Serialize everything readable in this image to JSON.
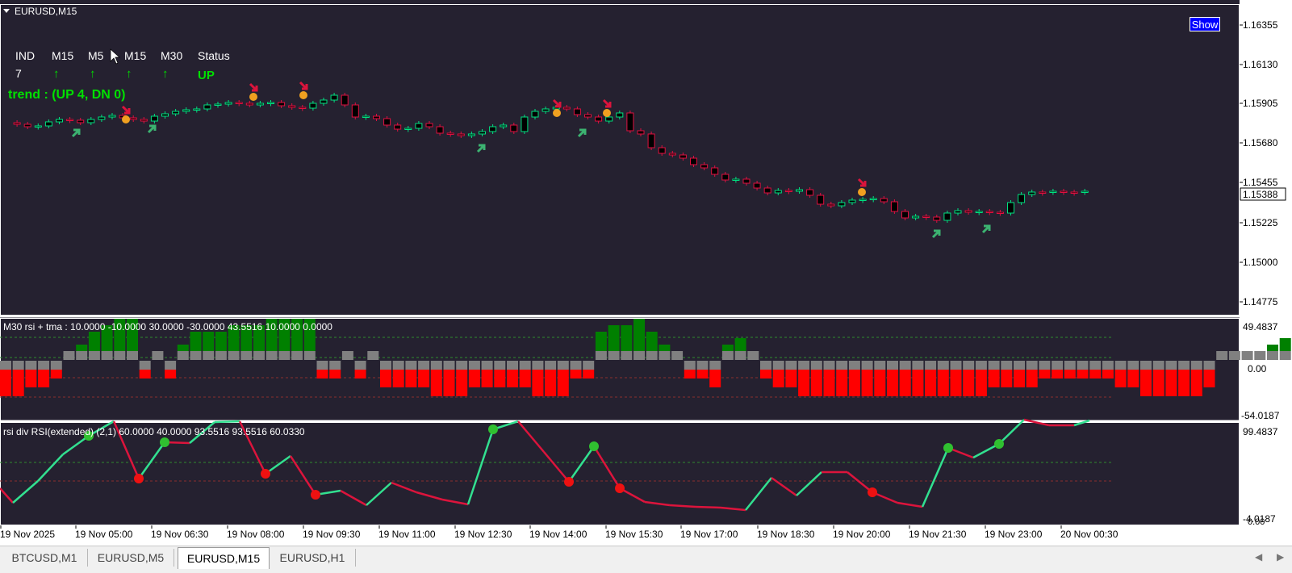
{
  "window": {
    "title": "EURUSD,M15"
  },
  "show_button": {
    "label": "Show"
  },
  "dashboard": {
    "headers": [
      "IND",
      "M15",
      "M5",
      "M15",
      "M30",
      "Status"
    ],
    "values": [
      "7",
      "↑",
      "↑",
      "↑",
      "↑",
      "UP"
    ],
    "trend": "trend : (UP 4, DN 0)"
  },
  "main_axis": {
    "labels": [
      "1.16355",
      "1.16130",
      "1.15905",
      "1.15680",
      "1.15455",
      "1.15225",
      "1.15000",
      "1.14775"
    ],
    "current_price": "1.15388"
  },
  "indicator1": {
    "title": "M30 rsi + tma  :  10.0000 -10.0000 30.0000 -30.0000 43.5516 10.0000 0.0000",
    "axis_labels": [
      "49.4837",
      "0.00",
      "-54.0187"
    ]
  },
  "indicator2": {
    "title": "rsi div RSI(extended) (2,1) 60.0000 40.0000 93.5516 93.5516 60.0330",
    "axis_labels": [
      "99.4837",
      "-4.0187",
      "0.00"
    ]
  },
  "time_axis": {
    "labels": [
      "19 Nov 2025",
      "19 Nov 05:00",
      "19 Nov 06:30",
      "19 Nov 08:00",
      "19 Nov 09:30",
      "19 Nov 11:00",
      "19 Nov 12:30",
      "19 Nov 14:00",
      "19 Nov 15:30",
      "19 Nov 17:00",
      "19 Nov 18:30",
      "19 Nov 20:00",
      "19 Nov 21:30",
      "19 Nov 23:00",
      "20 Nov 00:30"
    ]
  },
  "tabs": [
    {
      "label": "BTCUSD,M1",
      "active": false
    },
    {
      "label": "EURUSD,M5",
      "active": false
    },
    {
      "label": "EURUSD,M15",
      "active": true
    },
    {
      "label": "EURUSD,H1",
      "active": false
    }
  ],
  "colors": {
    "background": "#252130",
    "bull_candle": "#00e080",
    "bear_candle": "#e01040",
    "dashboard_green": "#00e000",
    "up_arrow": "#3cb371",
    "down_arrow": "#dc143c",
    "hist_green": "#008000",
    "hist_red": "#ff0000",
    "hist_gray": "#808080",
    "rsi_up": "#32e090",
    "rsi_down": "#dc143c"
  }
}
